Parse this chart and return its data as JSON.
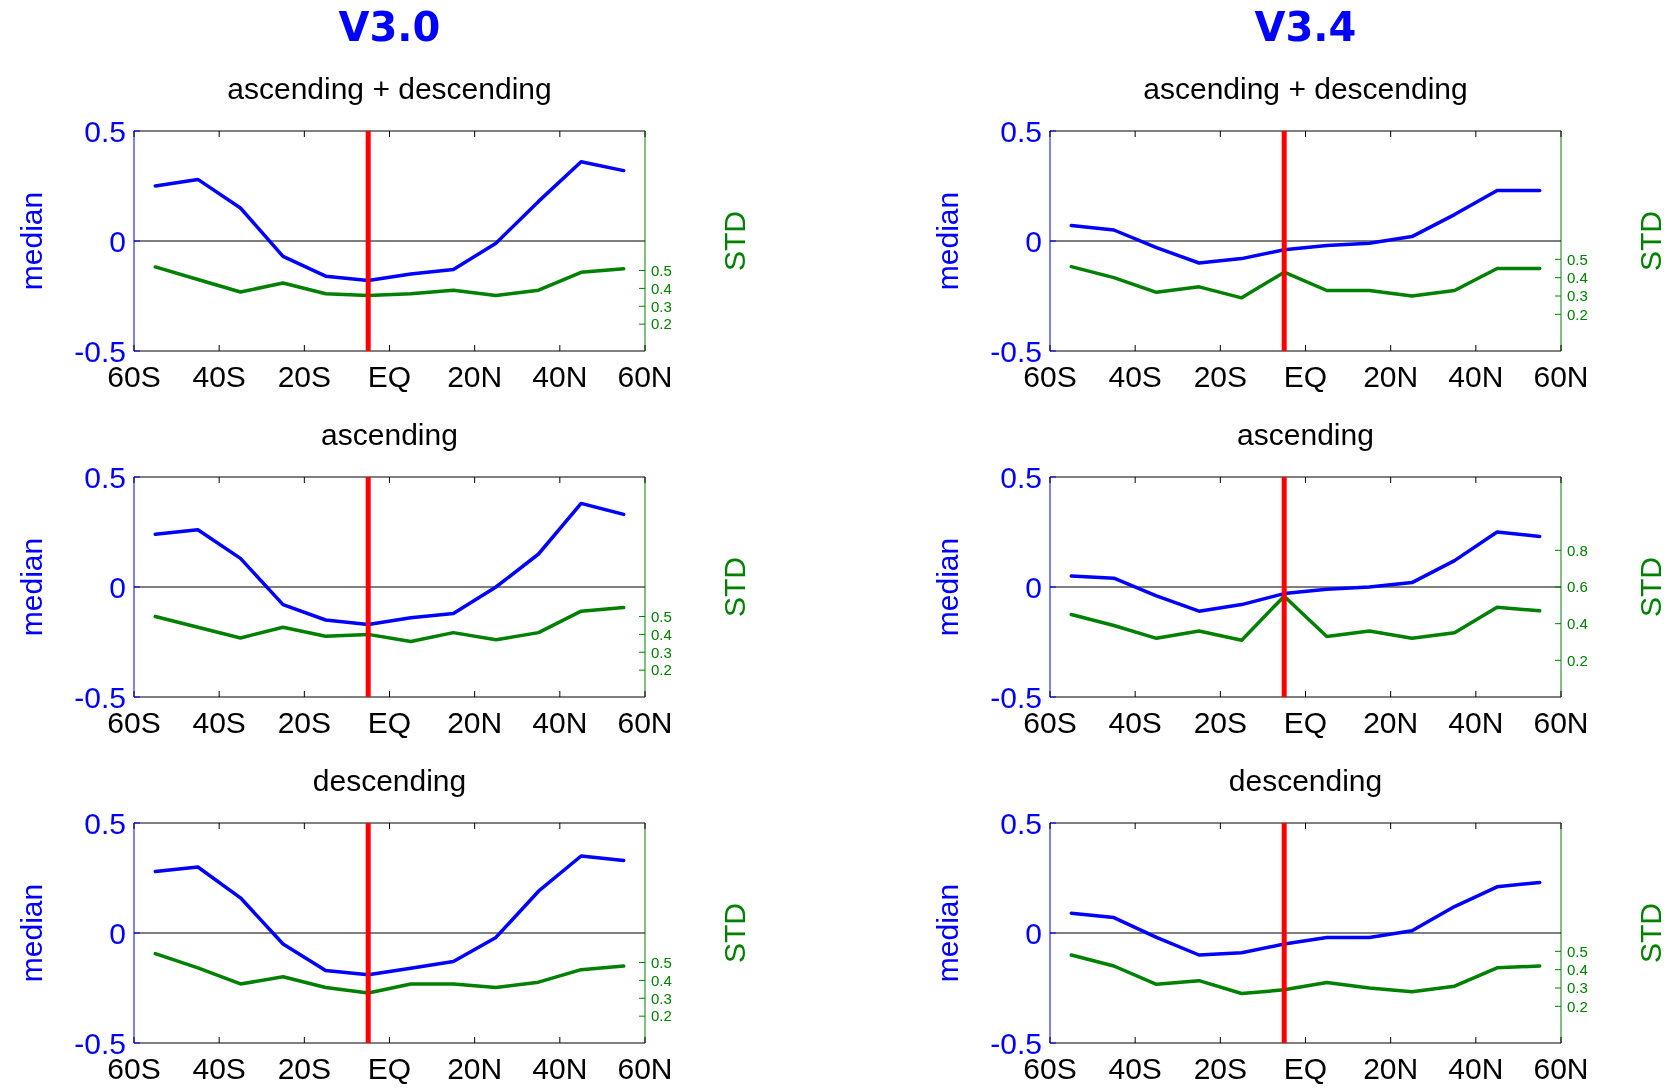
{
  "chart_data": [
    {
      "type": "line",
      "title": "V3.0",
      "subtitle": "ascending + descending",
      "ylabel": "median",
      "y2label": "STD",
      "x": [
        -55,
        -45,
        -35,
        -25,
        -15,
        -5,
        5,
        15,
        25,
        35,
        45,
        55
      ],
      "xlim": [
        -60,
        60
      ],
      "xticks": [
        {
          "value": -60,
          "label": "60S"
        },
        {
          "value": -40,
          "label": "40S"
        },
        {
          "value": -20,
          "label": "20S"
        },
        {
          "value": 0,
          "label": "EQ"
        },
        {
          "value": 20,
          "label": "20N"
        },
        {
          "value": 40,
          "label": "40N"
        },
        {
          "value": 60,
          "label": "60N"
        }
      ],
      "ylim": [
        -0.5,
        0.5
      ],
      "yticks": [
        -0.5,
        0,
        0.5
      ],
      "y2lim": [
        0.05,
        1.28
      ],
      "y2ticks": [
        0.2,
        0.3,
        0.4,
        0.5
      ],
      "series": [
        {
          "color": "#0000ff",
          "values": [
            0.25,
            0.28,
            0.15,
            -0.07,
            -0.16,
            -0.18,
            -0.15,
            -0.13,
            -0.01,
            0.18,
            0.36,
            0.32
          ]
        },
        {
          "color": "#008000",
          "axis": "y2",
          "values": [
            0.52,
            0.45,
            0.38,
            0.43,
            0.37,
            0.36,
            0.37,
            0.39,
            0.36,
            0.39,
            0.49,
            0.51
          ]
        }
      ],
      "ref_lines": [
        {
          "axis": "y",
          "value": 0,
          "color": "#000000"
        },
        {
          "axis": "x",
          "value": -5,
          "color": "#ff0000"
        }
      ]
    },
    {
      "type": "line",
      "title": "V3.4",
      "subtitle": "ascending + descending",
      "ylabel": "median",
      "y2label": "STD",
      "x": [
        -55,
        -45,
        -35,
        -25,
        -15,
        -5,
        5,
        15,
        25,
        35,
        45,
        55
      ],
      "xlim": [
        -60,
        60
      ],
      "xticks": [
        {
          "value": -60,
          "label": "60S"
        },
        {
          "value": -40,
          "label": "40S"
        },
        {
          "value": -20,
          "label": "20S"
        },
        {
          "value": 0,
          "label": "EQ"
        },
        {
          "value": 20,
          "label": "20N"
        },
        {
          "value": 40,
          "label": "40N"
        },
        {
          "value": 60,
          "label": "60N"
        }
      ],
      "ylim": [
        -0.5,
        0.5
      ],
      "yticks": [
        -0.5,
        0,
        0.5
      ],
      "y2lim": [
        0,
        1.2
      ],
      "y2ticks": [
        0.2,
        0.3,
        0.4,
        0.5
      ],
      "series": [
        {
          "color": "#0000ff",
          "values": [
            0.07,
            0.05,
            -0.03,
            -0.1,
            -0.08,
            -0.04,
            -0.02,
            -0.01,
            0.02,
            0.12,
            0.23,
            0.23
          ]
        },
        {
          "color": "#008000",
          "axis": "y2",
          "values": [
            0.46,
            0.4,
            0.32,
            0.35,
            0.29,
            0.43,
            0.33,
            0.33,
            0.3,
            0.33,
            0.45,
            0.45
          ]
        }
      ],
      "ref_lines": [
        {
          "axis": "y",
          "value": 0,
          "color": "#000000"
        },
        {
          "axis": "x",
          "value": -5,
          "color": "#ff0000"
        }
      ]
    },
    {
      "type": "line",
      "subtitle": "ascending",
      "ylabel": "median",
      "y2label": "STD",
      "x": [
        -55,
        -45,
        -35,
        -25,
        -15,
        -5,
        5,
        15,
        25,
        35,
        45,
        55
      ],
      "xlim": [
        -60,
        60
      ],
      "xticks": [
        {
          "value": -60,
          "label": "60S"
        },
        {
          "value": -40,
          "label": "40S"
        },
        {
          "value": -20,
          "label": "20S"
        },
        {
          "value": 0,
          "label": "EQ"
        },
        {
          "value": 20,
          "label": "20N"
        },
        {
          "value": 40,
          "label": "40N"
        },
        {
          "value": 60,
          "label": "60N"
        }
      ],
      "ylim": [
        -0.5,
        0.5
      ],
      "yticks": [
        -0.5,
        0,
        0.5
      ],
      "y2lim": [
        0.05,
        1.28
      ],
      "y2ticks": [
        0.2,
        0.3,
        0.4,
        0.5
      ],
      "series": [
        {
          "color": "#0000ff",
          "values": [
            0.24,
            0.26,
            0.13,
            -0.08,
            -0.15,
            -0.17,
            -0.14,
            -0.12,
            0.0,
            0.15,
            0.38,
            0.33
          ]
        },
        {
          "color": "#008000",
          "axis": "y2",
          "values": [
            0.5,
            0.44,
            0.38,
            0.44,
            0.39,
            0.4,
            0.36,
            0.41,
            0.37,
            0.41,
            0.53,
            0.55
          ]
        }
      ],
      "ref_lines": [
        {
          "axis": "y",
          "value": 0,
          "color": "#000000"
        },
        {
          "axis": "x",
          "value": -5,
          "color": "#ff0000"
        }
      ]
    },
    {
      "type": "line",
      "subtitle": "ascending",
      "ylabel": "median",
      "y2label": "STD",
      "x": [
        -55,
        -45,
        -35,
        -25,
        -15,
        -5,
        5,
        15,
        25,
        35,
        45,
        55
      ],
      "xlim": [
        -60,
        60
      ],
      "xticks": [
        {
          "value": -60,
          "label": "60S"
        },
        {
          "value": -40,
          "label": "40S"
        },
        {
          "value": -20,
          "label": "20S"
        },
        {
          "value": 0,
          "label": "EQ"
        },
        {
          "value": 20,
          "label": "20N"
        },
        {
          "value": 40,
          "label": "40N"
        },
        {
          "value": 60,
          "label": "60N"
        }
      ],
      "ylim": [
        -0.5,
        0.5
      ],
      "yticks": [
        -0.5,
        0,
        0.5
      ],
      "y2lim": [
        0,
        1.2
      ],
      "y2ticks": [
        0.2,
        0.4,
        0.6,
        0.8
      ],
      "series": [
        {
          "color": "#0000ff",
          "values": [
            0.05,
            0.04,
            -0.04,
            -0.11,
            -0.08,
            -0.03,
            -0.01,
            0.0,
            0.02,
            0.12,
            0.25,
            0.23
          ]
        },
        {
          "color": "#008000",
          "axis": "y2",
          "values": [
            0.45,
            0.39,
            0.32,
            0.36,
            0.31,
            0.55,
            0.33,
            0.36,
            0.32,
            0.35,
            0.49,
            0.47
          ]
        }
      ],
      "ref_lines": [
        {
          "axis": "y",
          "value": 0,
          "color": "#000000"
        },
        {
          "axis": "x",
          "value": -5,
          "color": "#ff0000"
        }
      ]
    },
    {
      "type": "line",
      "subtitle": "descending",
      "ylabel": "median",
      "y2label": "STD",
      "x": [
        -55,
        -45,
        -35,
        -25,
        -15,
        -5,
        5,
        15,
        25,
        35,
        45,
        55
      ],
      "xlim": [
        -60,
        60
      ],
      "xticks": [
        {
          "value": -60,
          "label": "60S"
        },
        {
          "value": -40,
          "label": "40S"
        },
        {
          "value": -20,
          "label": "20S"
        },
        {
          "value": 0,
          "label": "EQ"
        },
        {
          "value": 20,
          "label": "20N"
        },
        {
          "value": 40,
          "label": "40N"
        },
        {
          "value": 60,
          "label": "60N"
        }
      ],
      "ylim": [
        -0.5,
        0.5
      ],
      "yticks": [
        -0.5,
        0,
        0.5
      ],
      "y2lim": [
        0.05,
        1.28
      ],
      "y2ticks": [
        0.2,
        0.3,
        0.4,
        0.5
      ],
      "series": [
        {
          "color": "#0000ff",
          "values": [
            0.28,
            0.3,
            0.16,
            -0.05,
            -0.17,
            -0.19,
            -0.16,
            -0.13,
            -0.02,
            0.19,
            0.35,
            0.33
          ]
        },
        {
          "color": "#008000",
          "axis": "y2",
          "values": [
            0.55,
            0.47,
            0.38,
            0.42,
            0.36,
            0.33,
            0.38,
            0.38,
            0.36,
            0.39,
            0.46,
            0.48
          ]
        }
      ],
      "ref_lines": [
        {
          "axis": "y",
          "value": 0,
          "color": "#000000"
        },
        {
          "axis": "x",
          "value": -5,
          "color": "#ff0000"
        }
      ]
    },
    {
      "type": "line",
      "subtitle": "descending",
      "ylabel": "median",
      "y2label": "STD",
      "x": [
        -55,
        -45,
        -35,
        -25,
        -15,
        -5,
        5,
        15,
        25,
        35,
        45,
        55
      ],
      "xlim": [
        -60,
        60
      ],
      "xticks": [
        {
          "value": -60,
          "label": "60S"
        },
        {
          "value": -40,
          "label": "40S"
        },
        {
          "value": -20,
          "label": "20S"
        },
        {
          "value": 0,
          "label": "EQ"
        },
        {
          "value": 20,
          "label": "20N"
        },
        {
          "value": 40,
          "label": "40N"
        },
        {
          "value": 60,
          "label": "60N"
        }
      ],
      "ylim": [
        -0.5,
        0.5
      ],
      "yticks": [
        -0.5,
        0,
        0.5
      ],
      "y2lim": [
        0,
        1.2
      ],
      "y2ticks": [
        0.2,
        0.3,
        0.4,
        0.5
      ],
      "series": [
        {
          "color": "#0000ff",
          "values": [
            0.09,
            0.07,
            -0.02,
            -0.1,
            -0.09,
            -0.05,
            -0.02,
            -0.02,
            0.01,
            0.12,
            0.21,
            0.23
          ]
        },
        {
          "color": "#008000",
          "axis": "y2",
          "values": [
            0.48,
            0.42,
            0.32,
            0.34,
            0.27,
            0.29,
            0.33,
            0.3,
            0.28,
            0.31,
            0.41,
            0.42
          ]
        }
      ],
      "ref_lines": [
        {
          "axis": "y",
          "value": 0,
          "color": "#000000"
        },
        {
          "axis": "x",
          "value": -5,
          "color": "#ff0000"
        }
      ]
    }
  ]
}
